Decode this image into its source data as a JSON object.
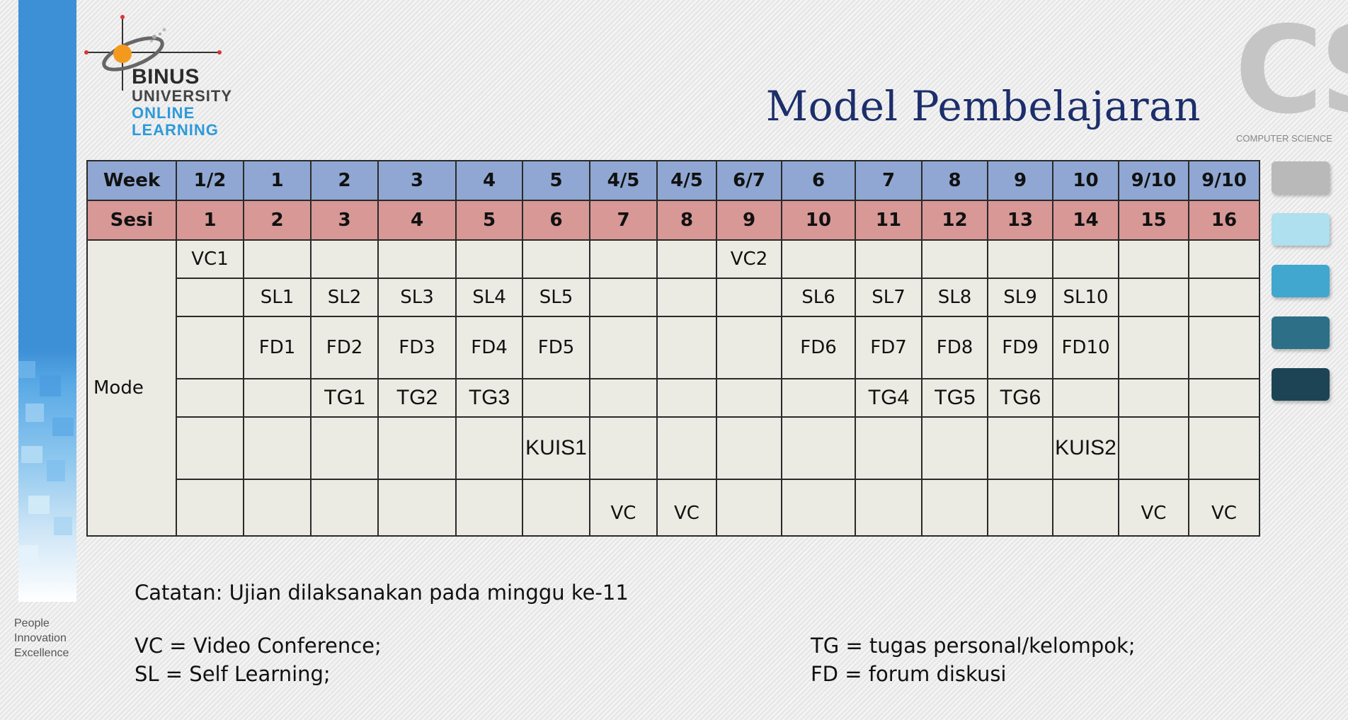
{
  "title": "Model Pembelajaran",
  "logo": {
    "binus": "BINUS",
    "university": "UNIVERSITY",
    "online": "ONLINE",
    "learning": "LEARNING"
  },
  "cs_logo": {
    "letters": "CS",
    "subtitle": "COMPUTER SCIENCE"
  },
  "tagline": [
    "People",
    "Innovation",
    "Excellence"
  ],
  "table": {
    "week_header": "Week",
    "weeks": [
      "1/2",
      "1",
      "2",
      "3",
      "4",
      "5",
      "4/5",
      "4/5",
      "6/7",
      "6",
      "7",
      "8",
      "9",
      "10",
      "9/10",
      "9/10"
    ],
    "sesi_header": "Sesi",
    "sesi": [
      "1",
      "2",
      "3",
      "4",
      "5",
      "6",
      "7",
      "8",
      "9",
      "10",
      "11",
      "12",
      "13",
      "14",
      "15",
      "16"
    ],
    "mode_label": "Mode",
    "rows": [
      [
        "VC1",
        "",
        "",
        "",
        "",
        "",
        "",
        "",
        "VC2",
        "",
        "",
        "",
        "",
        "",
        "",
        ""
      ],
      [
        "",
        "SL1",
        "SL2",
        "SL3",
        "SL4",
        "SL5",
        "",
        "",
        "",
        "SL6",
        "SL7",
        "SL8",
        "SL9",
        "SL10",
        "",
        ""
      ],
      [
        "",
        "FD1",
        "FD2",
        "FD3",
        "FD4",
        "FD5",
        "",
        "",
        "",
        "FD6",
        "FD7",
        "FD8",
        "FD9",
        "FD10",
        "",
        ""
      ],
      [
        "",
        "",
        "TG1",
        "TG2",
        "TG3",
        "",
        "",
        "",
        "",
        "",
        "TG4",
        "TG5",
        "TG6",
        "",
        "",
        ""
      ],
      [
        "",
        "",
        "",
        "",
        "",
        "KUIS1",
        "",
        "",
        "",
        "",
        "",
        "",
        "",
        "KUIS2",
        "",
        ""
      ],
      [
        "",
        "",
        "",
        "",
        "",
        "",
        "VC",
        "VC",
        "",
        "",
        "",
        "",
        "",
        "",
        "VC",
        "VC"
      ]
    ]
  },
  "note": "Catatan: Ujian dilaksanakan pada minggu ke-11",
  "legend": {
    "vc": "VC = Video Conference;",
    "sl": "SL = Self Learning;",
    "tg": "TG = tugas personal/kelompok;",
    "fd": "FD = forum diskusi"
  },
  "colors": {
    "title": "#1c2e6b",
    "week_row": "#8fa7d2",
    "sesi_row": "#d79896",
    "mode_rows": "#ebebe3",
    "sidebar_blue": "#3d8fd6",
    "swatches": [
      "#b9b9b9",
      "#aee0ef",
      "#41a7cf",
      "#2d6f86",
      "#1d4455"
    ]
  }
}
